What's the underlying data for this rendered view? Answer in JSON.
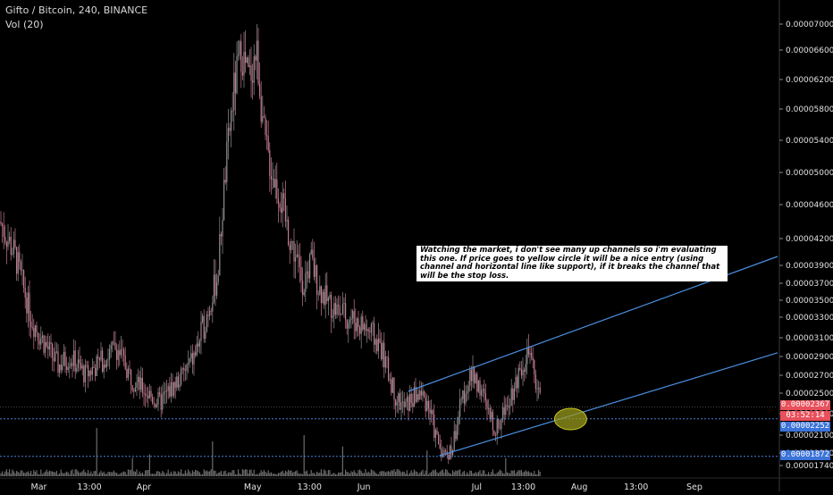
{
  "legend": {
    "symbol": "Gifto / Bitcoin, 240, BINANCE",
    "volume": "Vol (20)"
  },
  "annotation": "Watching the market, i don't see many up channels so i'm evaluating this one. If price goes to yellow circle it will be a nice entry (using channel and horizontal line like support), if it breaks the channel that will be the stop loss.",
  "badges": {
    "last_price": "0.00002367",
    "countdown": "03:52:14",
    "level_support": "0.00002252",
    "level_low": "0.00001872"
  },
  "colors": {
    "up": "#8f8f8f",
    "down": "#c47a8e",
    "channel": "#4a90e2",
    "level": "#4f7fd6",
    "badge_red": "#e8505b",
    "badge_blue": "#3b73d9",
    "ellipse": "#9a9a1e",
    "volume": "#6b6b6b"
  },
  "chart_data": {
    "type": "candlestick",
    "title": "Gifto / Bitcoin, 240, BINANCE",
    "y_ticks": [
      "0.00007000",
      "0.00006600",
      "0.00006200",
      "0.00005800",
      "0.00005400",
      "0.00005000",
      "0.00004600",
      "0.00004200",
      "0.00003900",
      "0.00003700",
      "0.00003500",
      "0.00003300",
      "0.00003100",
      "0.00002900",
      "0.00002700",
      "0.00002500",
      "0.00002300",
      "0.00002100",
      "0.00001920",
      "0.00001740"
    ],
    "y_tick_values": [
      7e-05,
      6.6e-05,
      6.2e-05,
      5.8e-05,
      5.4e-05,
      5e-05,
      4.6e-05,
      4.2e-05,
      3.9e-05,
      3.7e-05,
      3.5e-05,
      3.3e-05,
      3.1e-05,
      2.9e-05,
      2.7e-05,
      2.5e-05,
      2.3e-05,
      2.1e-05,
      1.92e-05,
      1.74e-05
    ],
    "x_ticks": [
      "Mar",
      "13:00",
      "Apr",
      "May",
      "13:00",
      "Jun",
      "Jul",
      "13:00",
      "Aug",
      "13:00",
      "Sep"
    ],
    "x_tick_frac": [
      0.05,
      0.115,
      0.185,
      0.325,
      0.398,
      0.468,
      0.613,
      0.673,
      0.745,
      0.818,
      0.893
    ],
    "close_path": [
      [
        0.0,
        4.4e-05
      ],
      [
        0.02,
        4e-05
      ],
      [
        0.04,
        3.3e-05
      ],
      [
        0.06,
        3e-05
      ],
      [
        0.075,
        2.8e-05
      ],
      [
        0.09,
        2.9e-05
      ],
      [
        0.11,
        2.7e-05
      ],
      [
        0.13,
        2.85e-05
      ],
      [
        0.15,
        3e-05
      ],
      [
        0.17,
        2.65e-05
      ],
      [
        0.19,
        2.5e-05
      ],
      [
        0.205,
        2.4e-05
      ],
      [
        0.22,
        2.55e-05
      ],
      [
        0.235,
        2.7e-05
      ],
      [
        0.25,
        2.9e-05
      ],
      [
        0.265,
        3.3e-05
      ],
      [
        0.28,
        3.8e-05
      ],
      [
        0.29,
        5e-05
      ],
      [
        0.3,
        6e-05
      ],
      [
        0.31,
        6.6e-05
      ],
      [
        0.32,
        6.2e-05
      ],
      [
        0.33,
        6.6e-05
      ],
      [
        0.34,
        5.4e-05
      ],
      [
        0.35,
        5e-05
      ],
      [
        0.36,
        4.7e-05
      ],
      [
        0.37,
        4.3e-05
      ],
      [
        0.38,
        4e-05
      ],
      [
        0.39,
        3.7e-05
      ],
      [
        0.4,
        3.95e-05
      ],
      [
        0.41,
        3.65e-05
      ],
      [
        0.42,
        3.5e-05
      ],
      [
        0.43,
        3.4e-05
      ],
      [
        0.45,
        3.3e-05
      ],
      [
        0.47,
        3.2e-05
      ],
      [
        0.49,
        3e-05
      ],
      [
        0.5,
        2.7e-05
      ],
      [
        0.51,
        2.45e-05
      ],
      [
        0.52,
        2.35e-05
      ],
      [
        0.53,
        2.45e-05
      ],
      [
        0.54,
        2.5e-05
      ],
      [
        0.55,
        2.4e-05
      ],
      [
        0.56,
        2.1e-05
      ],
      [
        0.57,
        1.9e-05
      ],
      [
        0.58,
        1.92e-05
      ],
      [
        0.59,
        2.3e-05
      ],
      [
        0.6,
        2.6e-05
      ],
      [
        0.61,
        2.7e-05
      ],
      [
        0.62,
        2.5e-05
      ],
      [
        0.63,
        2.25e-05
      ],
      [
        0.64,
        2.15e-05
      ],
      [
        0.65,
        2.4e-05
      ],
      [
        0.66,
        2.55e-05
      ],
      [
        0.67,
        2.8e-05
      ],
      [
        0.68,
        2.92e-05
      ],
      [
        0.69,
        2.6e-05
      ],
      [
        0.695,
        2.4e-05
      ]
    ],
    "drawings": {
      "upper_channel": [
        [
          0.525,
          2.52e-05
        ],
        [
          1.0,
          4e-05
        ]
      ],
      "lower_channel": [
        [
          0.565,
          1.88e-05
        ],
        [
          1.0,
          2.94e-05
        ]
      ],
      "level_support": 2.252e-05,
      "level_low": 1.872e-05,
      "last_price_line": 2.367e-05,
      "entry_circle_center": [
        0.72,
        2.25e-05
      ]
    }
  }
}
